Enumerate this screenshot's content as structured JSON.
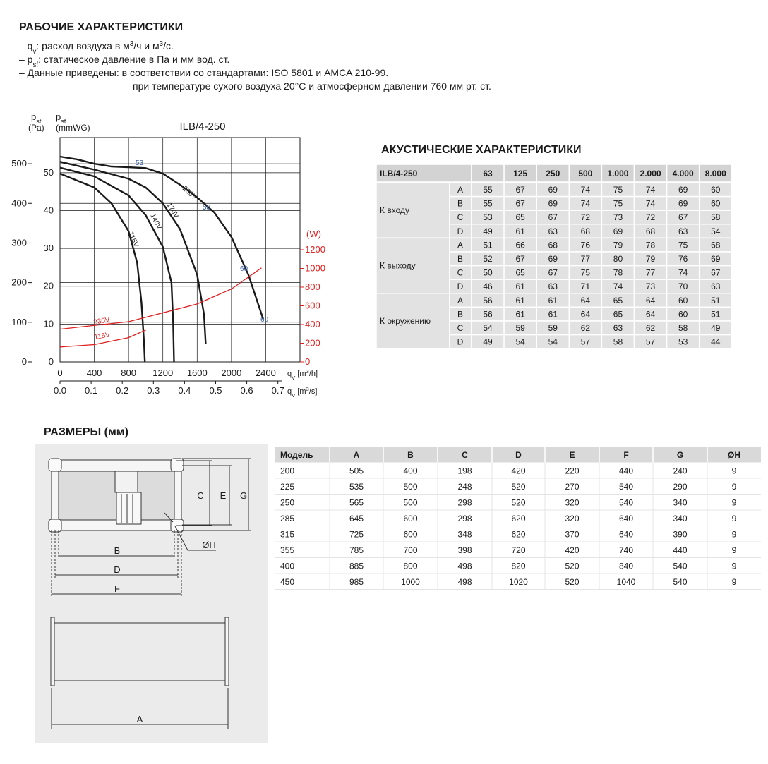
{
  "header": {
    "title": "РАБОЧИЕ ХАРАКТЕРИСТИКИ",
    "notes": [
      [
        {
          "t": "– q"
        },
        {
          "t": "v",
          "sub": true
        },
        {
          "t": ": расход воздуха в м"
        },
        {
          "t": "3",
          "sup": true
        },
        {
          "t": "/ч и м"
        },
        {
          "t": "3",
          "sup": true
        },
        {
          "t": "/с."
        }
      ],
      [
        {
          "t": "– p"
        },
        {
          "t": "sf",
          "sub": true
        },
        {
          "t": ": статическое давление в Па и мм вод. ст."
        }
      ],
      [
        {
          "t": "– Данные приведены: в соответствии со стандартами: ISO 5801 и AMCA 210-99."
        }
      ],
      [
        {
          "t": "при температуре сухого воздуха 20°C и атмосферном давлении 760 мм рт. ст."
        }
      ]
    ]
  },
  "chart_data": {
    "type": "line",
    "title": "ILB/4-250",
    "grid": true,
    "y_label": [
      [
        {
          "t": "p"
        },
        {
          "t": "sf",
          "sub": true
        }
      ],
      [
        {
          "t": "(Pa)"
        }
      ]
    ],
    "y3_label": [
      [
        {
          "t": "p"
        },
        {
          "t": "sf",
          "sub": true
        }
      ],
      [
        {
          "t": "(mmWG)"
        }
      ]
    ],
    "y2_label": "(W)",
    "x_label": [
      {
        "t": "q"
      },
      {
        "t": "V",
        "sub": true
      },
      {
        "t": " [m"
      },
      {
        "t": "3",
        "sup": true
      },
      {
        "t": "/h]"
      }
    ],
    "x2_label": [
      {
        "t": "q"
      },
      {
        "t": "V",
        "sub": true
      },
      {
        "t": " [m"
      },
      {
        "t": "3",
        "sup": true
      },
      {
        "t": "/s]"
      }
    ],
    "xlim": [
      0,
      2800
    ],
    "xticks": [
      0,
      400,
      800,
      1200,
      1600,
      2000,
      2400
    ],
    "x2lim": [
      0,
      0.771
    ],
    "x2ticks": [
      {
        "value": 0,
        "label": "0.0"
      },
      0.1,
      0.2,
      0.3,
      0.4,
      0.5,
      0.6,
      0.7
    ],
    "ylim": [
      0,
      566
    ],
    "yticks": [
      0,
      100,
      200,
      300,
      400,
      500
    ],
    "y3lim": [
      0,
      59.3
    ],
    "y3ticks": [
      0,
      10,
      20,
      30,
      40,
      50
    ],
    "y2lim": [
      0,
      2400
    ],
    "y2ticks": [
      0,
      200,
      400,
      600,
      800,
      1000,
      1200
    ],
    "y2_color": "#e02020",
    "series": [
      {
        "name": "230V",
        "color": "#1a1a1a",
        "x": [
          0,
          200,
          400,
          600,
          800,
          1000,
          1200,
          1400,
          1600,
          1800,
          2000,
          2200,
          2370
        ],
        "values": [
          518,
          511,
          500,
          493,
          491,
          489,
          475,
          447,
          415,
          377,
          315,
          219,
          108
        ]
      },
      {
        "name": "170V",
        "color": "#1a1a1a",
        "x": [
          0,
          400,
          800,
          1000,
          1200,
          1400,
          1600,
          1680,
          1700
        ],
        "values": [
          505,
          485,
          462,
          440,
          400,
          335,
          220,
          120,
          45
        ]
      },
      {
        "name": "140V",
        "color": "#1a1a1a",
        "x": [
          0,
          400,
          800,
          1000,
          1200,
          1300,
          1320,
          1330
        ],
        "values": [
          490,
          468,
          420,
          370,
          290,
          200,
          100,
          0
        ]
      },
      {
        "name": "115V",
        "color": "#1a1a1a",
        "x": [
          0,
          400,
          600,
          800,
          900,
          950,
          980,
          990
        ],
        "values": [
          475,
          440,
          400,
          330,
          250,
          150,
          50,
          0
        ]
      },
      {
        "name": "230V",
        "color": "#e02020",
        "axis": "y2",
        "x": [
          0,
          800,
          1600,
          2000,
          2350
        ],
        "values": [
          350,
          430,
          620,
          780,
          1005
        ]
      },
      {
        "name": "115V",
        "color": "#e02020",
        "axis": "y2",
        "x": [
          0,
          400,
          800,
          1000
        ],
        "values": [
          160,
          185,
          260,
          340
        ]
      }
    ],
    "annotation_color": "#3a5fa0",
    "annotations": [
      "53",
      "58",
      "60",
      "60"
    ]
  },
  "acoustic": {
    "title": "АКУСТИЧЕСКИЕ ХАРАКТЕРИСТИКИ",
    "model": "ILB/4-250",
    "columns": [
      63,
      125,
      250,
      500,
      "1.000",
      "2.000",
      "4.000",
      "8.000"
    ],
    "groups": [
      {
        "label": "К входу",
        "rows": [
          {
            "key": "A",
            "values": [
              55,
              67,
              69,
              74,
              75,
              74,
              69,
              60
            ]
          },
          {
            "key": "B",
            "values": [
              55,
              67,
              69,
              74,
              75,
              74,
              69,
              60
            ]
          },
          {
            "key": "C",
            "values": [
              53,
              65,
              67,
              72,
              73,
              72,
              67,
              58
            ]
          },
          {
            "key": "D",
            "values": [
              49,
              61,
              63,
              68,
              69,
              68,
              63,
              54
            ]
          }
        ]
      },
      {
        "label": "К выходу",
        "rows": [
          {
            "key": "A",
            "values": [
              51,
              66,
              68,
              76,
              79,
              78,
              75,
              68
            ]
          },
          {
            "key": "B",
            "values": [
              52,
              67,
              69,
              77,
              80,
              79,
              76,
              69
            ]
          },
          {
            "key": "C",
            "values": [
              50,
              65,
              67,
              75,
              78,
              77,
              74,
              67
            ]
          },
          {
            "key": "D",
            "values": [
              46,
              61,
              63,
              71,
              74,
              73,
              70,
              63
            ]
          }
        ]
      },
      {
        "label": "К окружению",
        "rows": [
          {
            "key": "A",
            "values": [
              56,
              61,
              61,
              64,
              65,
              64,
              60,
              51
            ]
          },
          {
            "key": "B",
            "values": [
              56,
              61,
              61,
              64,
              65,
              64,
              60,
              51
            ]
          },
          {
            "key": "C",
            "values": [
              54,
              59,
              59,
              62,
              63,
              62,
              58,
              49
            ]
          },
          {
            "key": "D",
            "values": [
              49,
              54,
              54,
              57,
              58,
              57,
              53,
              44
            ]
          }
        ]
      }
    ]
  },
  "dimensions": {
    "title": "РАЗМЕРЫ (мм)",
    "header": [
      "Модель",
      "A",
      "B",
      "C",
      "D",
      "E",
      "F",
      "G",
      "ØH"
    ],
    "rows": [
      [
        200,
        505,
        400,
        198,
        420,
        220,
        440,
        240,
        9
      ],
      [
        225,
        535,
        500,
        248,
        520,
        270,
        540,
        290,
        9
      ],
      [
        250,
        565,
        500,
        298,
        520,
        320,
        540,
        340,
        9
      ],
      [
        285,
        645,
        600,
        298,
        620,
        320,
        640,
        340,
        9
      ],
      [
        315,
        725,
        600,
        348,
        620,
        370,
        640,
        390,
        9
      ],
      [
        355,
        785,
        700,
        398,
        720,
        420,
        740,
        440,
        9
      ],
      [
        400,
        885,
        800,
        498,
        820,
        520,
        840,
        540,
        9
      ],
      [
        450,
        985,
        1000,
        498,
        1020,
        520,
        1040,
        540,
        9
      ]
    ],
    "diagram_labels": {
      "B": "B",
      "D": "D",
      "F": "F",
      "C": "C",
      "E": "E",
      "G": "G",
      "H": "ØH",
      "A": "A"
    }
  }
}
